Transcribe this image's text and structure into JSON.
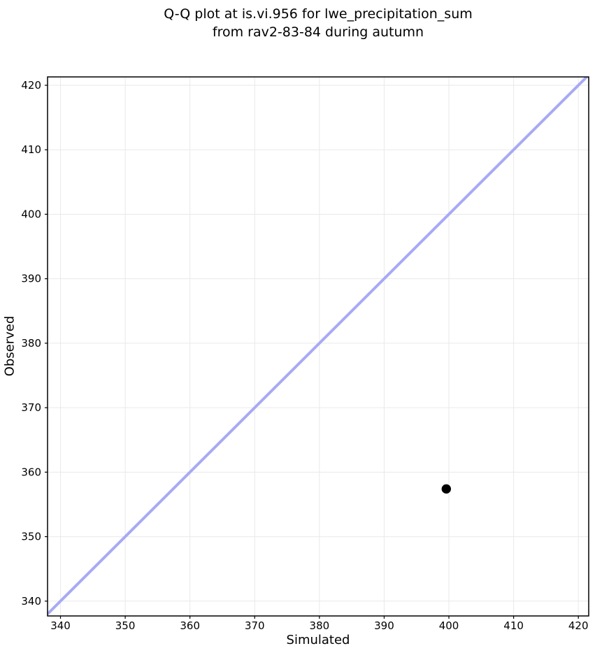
{
  "chart_data": {
    "type": "scatter",
    "title": "Q-Q plot at is.vi.956 for lwe_precipitation_sum\nfrom rav2-83-84 during autumn",
    "xlabel": "Simulated",
    "ylabel": "Observed",
    "xlim": [
      338.0,
      421.6
    ],
    "ylim": [
      337.7,
      421.3
    ],
    "xticks": [
      340,
      350,
      360,
      370,
      380,
      390,
      400,
      410,
      420
    ],
    "yticks": [
      340,
      350,
      360,
      370,
      380,
      390,
      400,
      410,
      420
    ],
    "grid": true,
    "legend": null,
    "series": [
      {
        "name": "observed-vs-simulated-quantiles",
        "marker": "circle",
        "points": [
          {
            "x": 399.6,
            "y": 357.4
          }
        ]
      }
    ],
    "reference_line": {
      "type": "identity",
      "x": [
        338.0,
        421.6
      ],
      "y": [
        338.0,
        421.6
      ]
    },
    "colors": {
      "reference_line": "#a8aaf4",
      "point": "#000000",
      "grid": "#e9e9e9",
      "spine": "#000000",
      "tick": "#000000",
      "text": "#000000",
      "background": "#ffffff"
    },
    "style": {
      "reference_line_width": 4,
      "point_radius": 6.7,
      "tick_font_size": 15,
      "tick_length": 4
    }
  }
}
